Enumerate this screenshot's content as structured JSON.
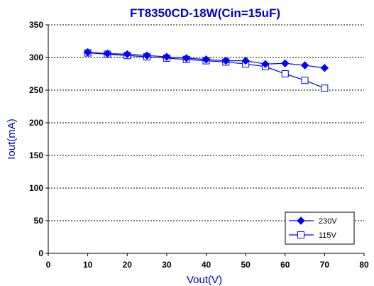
{
  "chart_data": {
    "type": "line",
    "title": "FT8350CD-18W(Cin=15uF)",
    "xlabel": "Vout(V)",
    "ylabel": "Iout(mA)",
    "xlim": [
      0,
      80
    ],
    "ylim": [
      0,
      350
    ],
    "xticks": [
      0,
      10,
      20,
      30,
      40,
      50,
      60,
      70,
      80
    ],
    "yticks": [
      0,
      50,
      100,
      150,
      200,
      250,
      300,
      350
    ],
    "grid": "horizontal dashed",
    "legend_position": "bottom-right",
    "series": [
      {
        "name": "230V",
        "marker": "filled-diamond",
        "color": "#0000ff",
        "x": [
          10,
          15,
          20,
          25,
          30,
          35,
          40,
          45,
          50,
          55,
          60,
          65,
          70
        ],
        "y": [
          308,
          306,
          305,
          303,
          301,
          299,
          297,
          295,
          295,
          290,
          291,
          288,
          284
        ]
      },
      {
        "name": "115V",
        "marker": "open-square",
        "color": "#0000ff",
        "x": [
          10,
          15,
          20,
          25,
          30,
          35,
          40,
          45,
          50,
          55,
          60,
          65,
          70
        ],
        "y": [
          307,
          305,
          303,
          301,
          299,
          297,
          295,
          293,
          290,
          286,
          275,
          265,
          253
        ]
      }
    ]
  }
}
